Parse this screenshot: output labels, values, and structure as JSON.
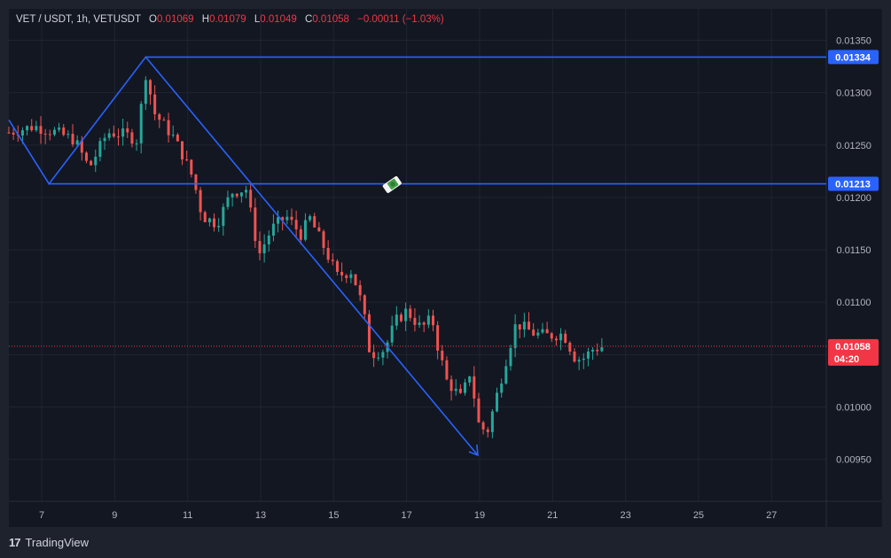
{
  "header": {
    "symbol": "VET / USDT, 1h, VETUSDT",
    "o_label": "O",
    "o_value": "0.01069",
    "h_label": "H",
    "h_value": "0.01079",
    "l_label": "L",
    "l_value": "0.01049",
    "c_label": "C",
    "c_value": "0.01058",
    "change": "−0.00011 (−1.03%)"
  },
  "footer": {
    "brand": "TradingView"
  },
  "colors": {
    "background": "#131722",
    "up": "#26a69a",
    "down": "#ef5350",
    "drawing": "#2962ff",
    "price_tag": "#f23645",
    "level_tag": "#2962ff"
  },
  "chart_data": {
    "type": "candlestick",
    "timeframe": "1h",
    "x_ticks": [
      "7",
      "9",
      "11",
      "13",
      "15",
      "17",
      "19",
      "21",
      "23",
      "25",
      "27"
    ],
    "y_ticks": [
      "0.01350",
      "0.01300",
      "0.01250",
      "0.01200",
      "0.01150",
      "0.01100",
      "0.01050",
      "0.01000",
      "0.00950"
    ],
    "ylim": [
      0.0091,
      0.0138
    ],
    "xlim_days": [
      6.1,
      28.5
    ],
    "levels": [
      {
        "label": "0.01334",
        "value": 0.01334
      },
      {
        "label": "0.01213",
        "value": 0.01213
      }
    ],
    "last_price": {
      "label": "0.01058",
      "value": 0.01058,
      "countdown": "04:20"
    },
    "path_points": [
      {
        "day": 6.1,
        "price": 0.01274
      },
      {
        "day": 7.2,
        "price": 0.01213
      },
      {
        "day": 9.85,
        "price": 0.01334
      },
      {
        "day": 18.95,
        "price": 0.00954
      }
    ],
    "price_path": [
      {
        "day": 6.1,
        "price": 0.01262
      },
      {
        "day": 6.8,
        "price": 0.01268
      },
      {
        "day": 7.4,
        "price": 0.01262
      },
      {
        "day": 7.9,
        "price": 0.01255
      },
      {
        "day": 8.3,
        "price": 0.01228
      },
      {
        "day": 8.8,
        "price": 0.01262
      },
      {
        "day": 9.3,
        "price": 0.0126
      },
      {
        "day": 9.6,
        "price": 0.01255
      },
      {
        "day": 9.85,
        "price": 0.01318
      },
      {
        "day": 10.1,
        "price": 0.0128
      },
      {
        "day": 10.6,
        "price": 0.01258
      },
      {
        "day": 10.9,
        "price": 0.01238
      },
      {
        "day": 11.15,
        "price": 0.01218
      },
      {
        "day": 11.4,
        "price": 0.01182
      },
      {
        "day": 11.8,
        "price": 0.01175
      },
      {
        "day": 12.2,
        "price": 0.01205
      },
      {
        "day": 12.6,
        "price": 0.01208
      },
      {
        "day": 12.95,
        "price": 0.01145
      },
      {
        "day": 13.3,
        "price": 0.0117
      },
      {
        "day": 13.7,
        "price": 0.01182
      },
      {
        "day": 14.1,
        "price": 0.01165
      },
      {
        "day": 14.35,
        "price": 0.0118
      },
      {
        "day": 14.7,
        "price": 0.01155
      },
      {
        "day": 15.1,
        "price": 0.01125
      },
      {
        "day": 15.5,
        "price": 0.0113
      },
      {
        "day": 15.8,
        "price": 0.01095
      },
      {
        "day": 16.0,
        "price": 0.0105
      },
      {
        "day": 16.4,
        "price": 0.01055
      },
      {
        "day": 16.7,
        "price": 0.01082
      },
      {
        "day": 17.0,
        "price": 0.01092
      },
      {
        "day": 17.4,
        "price": 0.01075
      },
      {
        "day": 17.7,
        "price": 0.01085
      },
      {
        "day": 17.8,
        "price": 0.01065
      },
      {
        "day": 18.1,
        "price": 0.01025
      },
      {
        "day": 18.5,
        "price": 0.01008
      },
      {
        "day": 18.75,
        "price": 0.01035
      },
      {
        "day": 18.95,
        "price": 0.00985
      },
      {
        "day": 19.2,
        "price": 0.00975
      },
      {
        "day": 19.5,
        "price": 0.01015
      },
      {
        "day": 19.8,
        "price": 0.01055
      },
      {
        "day": 20.0,
        "price": 0.0108
      },
      {
        "day": 20.5,
        "price": 0.0107
      },
      {
        "day": 20.9,
        "price": 0.01068
      },
      {
        "day": 21.3,
        "price": 0.0107
      },
      {
        "day": 21.6,
        "price": 0.01048
      },
      {
        "day": 21.8,
        "price": 0.01045
      },
      {
        "day": 22.1,
        "price": 0.01055
      },
      {
        "day": 22.4,
        "price": 0.01058
      }
    ]
  }
}
